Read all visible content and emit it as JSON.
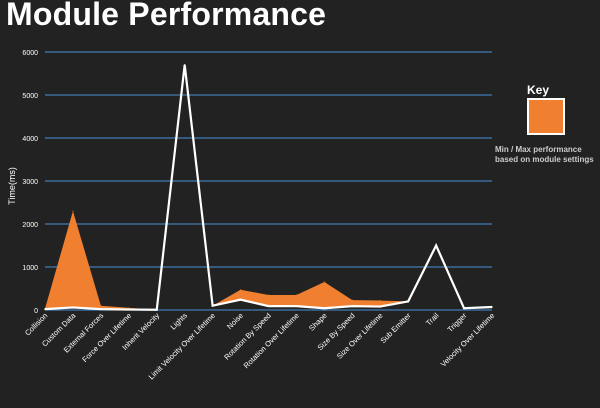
{
  "chart_data": {
    "type": "area",
    "title": "Module Performance",
    "xlabel": "",
    "ylabel": "Time(ms)",
    "ylim": [
      0,
      6000
    ],
    "yticks": [
      0,
      1000,
      2000,
      3000,
      4000,
      5000,
      6000
    ],
    "grid": true,
    "categories": [
      "Collision",
      "Custom Data",
      "External Forces",
      "Force Over Lifetime",
      "Inherit Velocity",
      "Lights",
      "Limit Velocity Over Lifetime",
      "Noise",
      "Rotation By Speed",
      "Rotation Over Lifetime",
      "Shape",
      "Size By Speed",
      "Size Over Lifetime",
      "Sub Emitter",
      "Trail",
      "Trigger",
      "Velocity Over Lifetime"
    ],
    "series": [
      {
        "values": [
          30,
          2300,
          100,
          50,
          10,
          5700,
          100,
          470,
          350,
          350,
          650,
          230,
          220,
          200,
          1500,
          40,
          70
        ],
        "color": "#f08030",
        "style": "area_max"
      },
      {
        "values": [
          20,
          60,
          20,
          10,
          5,
          5700,
          100,
          240,
          90,
          90,
          40,
          90,
          80,
          200,
          1500,
          40,
          70
        ],
        "color": "#ffffff",
        "style": "line_min"
      }
    ],
    "legend": {
      "title": "Key",
      "description": "Min / Max performance based on module settings",
      "swatch_color": "#f08030",
      "position": "right"
    },
    "colors": {
      "background": "#222222",
      "grid": "#4a90d9",
      "text": "#ffffff"
    }
  }
}
